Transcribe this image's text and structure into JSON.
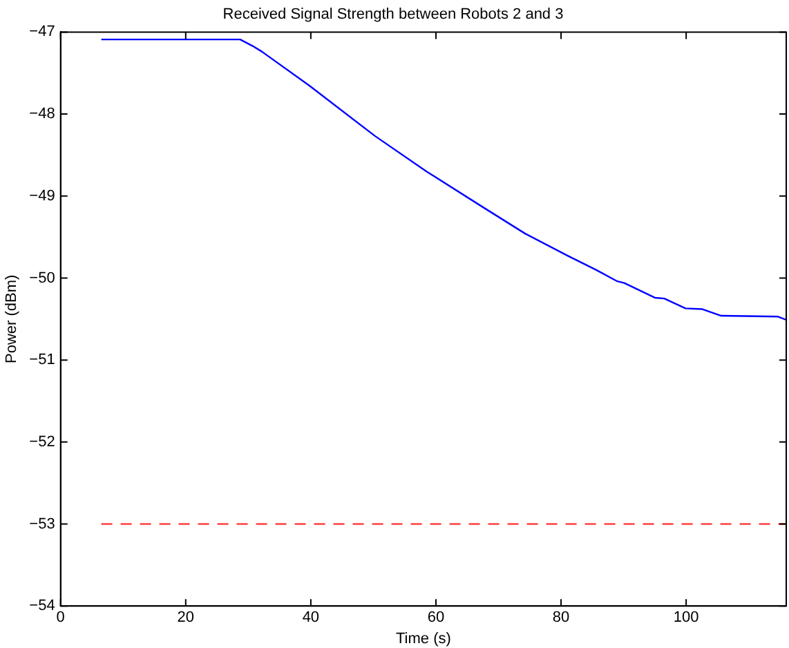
{
  "chart_data": {
    "type": "line",
    "title": "Received Signal Strength between Robots 2 and 3",
    "xlabel": "Time (s)",
    "ylabel": "Power (dBm)",
    "series": [
      {
        "color": "#0000ff",
        "line_style": "solid",
        "x": [
          6.5,
          28.7,
          30.7,
          32.2,
          39.7,
          50.3,
          58.5,
          67.6,
          74.3,
          81.1,
          85.6,
          89.0,
          90.1,
          95.0,
          96.5,
          99.9,
          102.6,
          105.6,
          114.6,
          116.0
        ],
        "values": [
          -47.09,
          -47.09,
          -47.17,
          -47.24,
          -47.65,
          -48.27,
          -48.7,
          -49.14,
          -49.46,
          -49.73,
          -49.9,
          -50.04,
          -50.06,
          -50.24,
          -50.25,
          -50.37,
          -50.38,
          -50.46,
          -50.47,
          -50.51
        ]
      },
      {
        "color": "#ff4040",
        "line_style": "dashed",
        "x": [
          6.5,
          116.0
        ],
        "values": [
          -53,
          -53
        ]
      }
    ],
    "xlim": [
      0,
      116
    ],
    "xticks": [
      0,
      20,
      40,
      60,
      80,
      100
    ],
    "ylim": [
      -54,
      -47
    ],
    "yticks": [
      -54,
      -53,
      -52,
      -51,
      -50,
      -49,
      -48,
      -47
    ],
    "grid": false,
    "legend": false,
    "marker": "none"
  }
}
